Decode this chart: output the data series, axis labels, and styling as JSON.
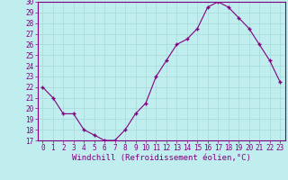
{
  "x": [
    0,
    1,
    2,
    3,
    4,
    5,
    6,
    7,
    8,
    9,
    10,
    11,
    12,
    13,
    14,
    15,
    16,
    17,
    18,
    19,
    20,
    21,
    22,
    23
  ],
  "y": [
    22,
    21,
    19.5,
    19.5,
    18,
    17.5,
    17,
    17,
    18,
    19.5,
    20.5,
    23,
    24.5,
    26,
    26.5,
    27.5,
    29.5,
    30,
    29.5,
    28.5,
    27.5,
    26,
    24.5,
    22.5
  ],
  "line_color": "#800080",
  "marker_color": "#800080",
  "bg_color": "#c0eded",
  "grid_color": "#a8d8d8",
  "xlabel": "Windchill (Refroidissement éolien,°C)",
  "xlim": [
    -0.5,
    23.5
  ],
  "ylim": [
    17,
    30
  ],
  "yticks": [
    17,
    18,
    19,
    20,
    21,
    22,
    23,
    24,
    25,
    26,
    27,
    28,
    29,
    30
  ],
  "xticks": [
    0,
    1,
    2,
    3,
    4,
    5,
    6,
    7,
    8,
    9,
    10,
    11,
    12,
    13,
    14,
    15,
    16,
    17,
    18,
    19,
    20,
    21,
    22,
    23
  ],
  "tick_label_color": "#800080",
  "spine_color": "#800080",
  "xlabel_fontsize": 6.5,
  "tick_fontsize": 5.5
}
